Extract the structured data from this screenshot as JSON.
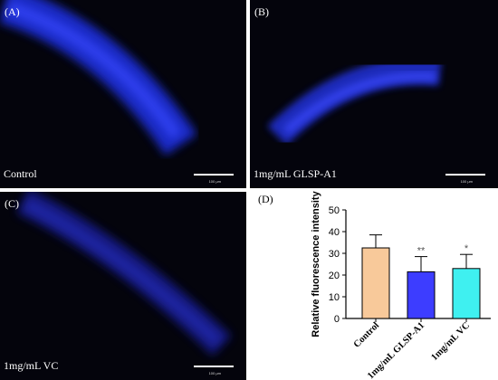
{
  "panels": [
    {
      "label": "(A)",
      "condition": "Control",
      "scale_text": "100 μm"
    },
    {
      "label": "(B)",
      "condition": "1mg/mL GLSP-A1",
      "scale_text": "100 μm"
    },
    {
      "label": "(C)",
      "condition": "1mg/mL VC",
      "scale_text": "100 μm"
    }
  ],
  "chart_label": "(D)",
  "chart_data": {
    "type": "bar",
    "categories": [
      "Control",
      "1mg/mL GLSP-A1",
      "1mg/mL VC"
    ],
    "values": [
      32.5,
      21.5,
      23.0
    ],
    "errors": [
      6.0,
      7.0,
      6.5
    ],
    "significance": [
      "",
      "**",
      "*"
    ],
    "colors": [
      "#f8c99a",
      "#3d3dff",
      "#3ff0f0"
    ],
    "xlabel": "",
    "ylabel": "Relative fluorescence intensity",
    "ylim": [
      0,
      50
    ],
    "yticks": [
      0,
      10,
      20,
      30,
      40,
      50
    ],
    "grid": false
  }
}
